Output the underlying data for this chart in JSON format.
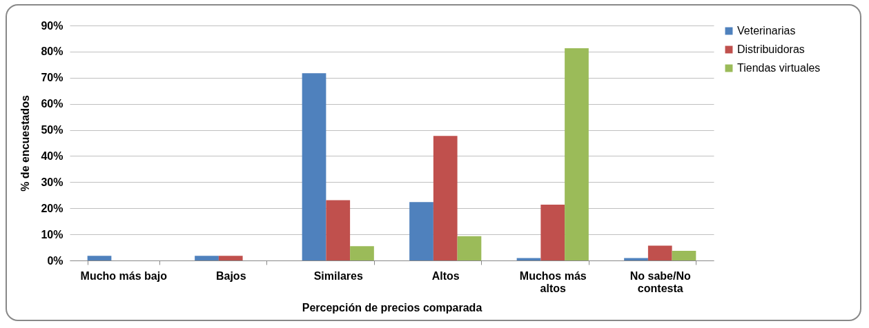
{
  "chart_data": {
    "type": "bar",
    "xlabel": "Percepción de precios comparada",
    "ylabel": "% de encuestados",
    "categories": [
      "Mucho más bajo",
      "Bajos",
      "Similares",
      "Altos",
      "Muchos más altos",
      "No sabe/No contesta"
    ],
    "series": [
      {
        "name": "Veterinarias",
        "color": "#4f81bd",
        "values": [
          1.8,
          1.8,
          71.7,
          22.4,
          0.9,
          0.9
        ]
      },
      {
        "name": "Distribuidoras",
        "color": "#c0504d",
        "values": [
          0,
          1.8,
          23.1,
          47.7,
          21.4,
          5.7
        ]
      },
      {
        "name": "Tiendas virtuales",
        "color": "#9bbb59",
        "values": [
          0,
          0,
          5.5,
          9.3,
          81.3,
          3.7
        ]
      }
    ],
    "ylim": [
      0,
      90
    ],
    "yticks": [
      {
        "value": 0,
        "label": "0%"
      },
      {
        "value": 10,
        "label": "10%"
      },
      {
        "value": 20,
        "label": "20%"
      },
      {
        "value": 30,
        "label": "30%"
      },
      {
        "value": 40,
        "label": "40%"
      },
      {
        "value": 50,
        "label": "50%"
      },
      {
        "value": 60,
        "label": "60%"
      },
      {
        "value": 70,
        "label": "70%"
      },
      {
        "value": 80,
        "label": "80%"
      },
      {
        "value": 90,
        "label": "90%"
      }
    ],
    "grid": "y",
    "legend": "right"
  }
}
